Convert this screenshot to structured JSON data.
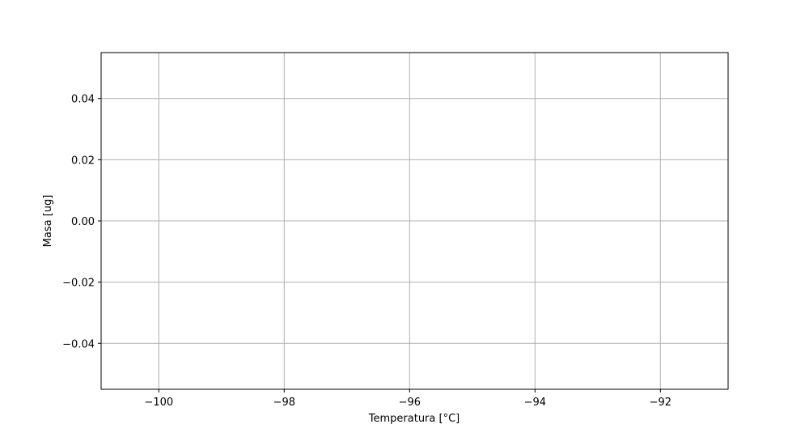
{
  "chart_data": {
    "type": "line",
    "title": "",
    "xlabel": "Temperatura [°C]",
    "ylabel": "Masa [ug]",
    "xlim": [
      -100.92,
      -90.92
    ],
    "ylim": [
      -0.055,
      0.055
    ],
    "xticks": [
      -100,
      -98,
      -96,
      -94,
      -92
    ],
    "xtick_labels": [
      "−100",
      "−98",
      "−96",
      "−94",
      "−92"
    ],
    "yticks": [
      0.04,
      0.02,
      0.0,
      -0.02,
      -0.04
    ],
    "ytick_labels": [
      "0.04",
      "0.02",
      "0.00",
      "−0.02",
      "−0.04"
    ],
    "grid": true,
    "series": [],
    "colors": {
      "grid": "#b0b0b0",
      "axes": "#000000",
      "background": "#ffffff"
    }
  }
}
